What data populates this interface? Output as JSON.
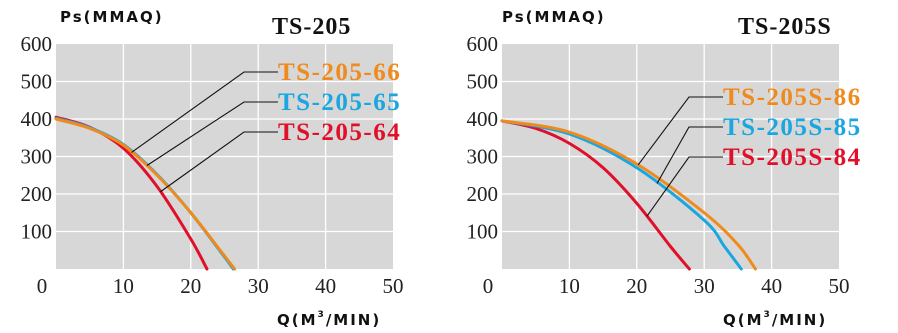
{
  "chart_data": [
    {
      "type": "line",
      "title": "TS-205",
      "ylabel": "Ps(MMAQ)",
      "xlabel_prefix": "Q(M",
      "xlabel_sup": "3",
      "xlabel_suffix": "/MIN)",
      "xlim": [
        0,
        50
      ],
      "ylim": [
        0,
        600
      ],
      "xticks": [
        "0",
        "10",
        "20",
        "30",
        "40",
        "50"
      ],
      "yticks": [
        "100",
        "200",
        "300",
        "400",
        "500",
        "600"
      ],
      "grid": true,
      "series": [
        {
          "name": "TS-205-66",
          "color": "#f08a1c",
          "x": [
            0,
            5,
            10,
            15,
            20,
            25,
            26.5
          ],
          "y": [
            400,
            375,
            330,
            250,
            150,
            35,
            0
          ]
        },
        {
          "name": "TS-205-65",
          "color": "#1aa7e0",
          "x": [
            0,
            5,
            10,
            15,
            20,
            25,
            26.3
          ],
          "y": [
            402,
            377,
            332,
            252,
            150,
            32,
            0
          ]
        },
        {
          "name": "TS-205-64",
          "color": "#e0102a",
          "x": [
            0,
            5,
            10,
            15,
            20,
            22.4
          ],
          "y": [
            405,
            378,
            322,
            220,
            80,
            0
          ]
        }
      ]
    },
    {
      "type": "line",
      "title": "TS-205S",
      "ylabel": "Ps(MMAQ)",
      "xlabel_prefix": "Q(M",
      "xlabel_sup": "3",
      "xlabel_suffix": "/MIN)",
      "xlim": [
        0,
        50
      ],
      "ylim": [
        0,
        600
      ],
      "xticks": [
        "0",
        "10",
        "20",
        "30",
        "40",
        "50"
      ],
      "yticks": [
        "100",
        "200",
        "300",
        "400",
        "500",
        "600"
      ],
      "grid": true,
      "series": [
        {
          "name": "TS-205S-86",
          "color": "#f08a1c",
          "x": [
            0,
            10,
            20,
            30,
            35,
            37.6
          ],
          "y": [
            395,
            365,
            280,
            150,
            65,
            0
          ]
        },
        {
          "name": "TS-205S-85",
          "color": "#1aa7e0",
          "x": [
            0,
            10,
            20,
            30,
            33,
            35.5
          ],
          "y": [
            395,
            360,
            270,
            130,
            60,
            0
          ]
        },
        {
          "name": "TS-205S-84",
          "color": "#e0102a",
          "x": [
            0,
            5,
            10,
            15,
            20,
            25,
            27.8
          ],
          "y": [
            395,
            375,
            335,
            270,
            175,
            60,
            0
          ]
        }
      ]
    }
  ]
}
